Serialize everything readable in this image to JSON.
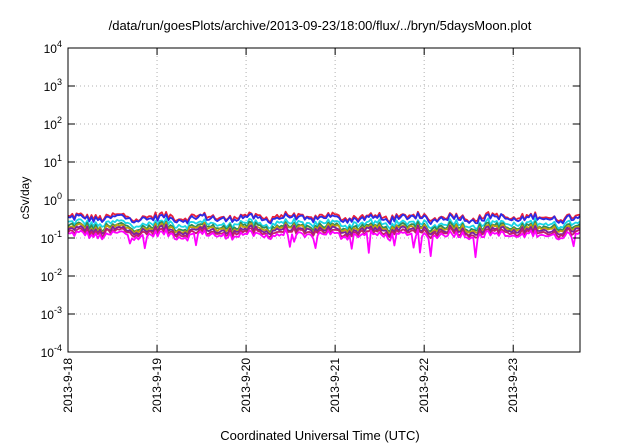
{
  "chart_data": {
    "type": "line",
    "title": "/data/run/goesPlots/archive/2013-09-23/18:00/flux/../bryn/5daysMoon.plot",
    "xlabel": "Coordinated Universal Time (UTC)",
    "ylabel": "cSv/day",
    "yscale": "log",
    "ylim": [
      0.0001,
      10000
    ],
    "yticks": [
      {
        "base": "10",
        "exp": "-4"
      },
      {
        "base": "10",
        "exp": "-3"
      },
      {
        "base": "10",
        "exp": "-2"
      },
      {
        "base": "10",
        "exp": "-1"
      },
      {
        "base": "10",
        "exp": "0"
      },
      {
        "base": "10",
        "exp": "1"
      },
      {
        "base": "10",
        "exp": "2"
      },
      {
        "base": "10",
        "exp": "3"
      },
      {
        "base": "10",
        "exp": "4"
      }
    ],
    "xticks": [
      "2013-9-18",
      "2013-9-19",
      "2013-9-20",
      "2013-9-21",
      "2013-9-22",
      "2013-9-23"
    ],
    "xlim": [
      "2013-09-18 00:00",
      "2013-09-23 18:00"
    ],
    "grid": true,
    "series": [
      {
        "color": "#e8203a",
        "approx_level": 0.36
      },
      {
        "color": "#2a2ae6",
        "approx_level": 0.33
      },
      {
        "color": "#18d6e6",
        "approx_level": 0.24
      },
      {
        "color": "#2e8b57",
        "approx_level": 0.2
      },
      {
        "color": "#c0a010",
        "approx_level": 0.18
      },
      {
        "color": "#7a1fa0",
        "approx_level": 0.16
      },
      {
        "color": "#c0206a",
        "approx_level": 0.14
      },
      {
        "color": "#ff00ff",
        "approx_level": 0.12
      }
    ]
  }
}
